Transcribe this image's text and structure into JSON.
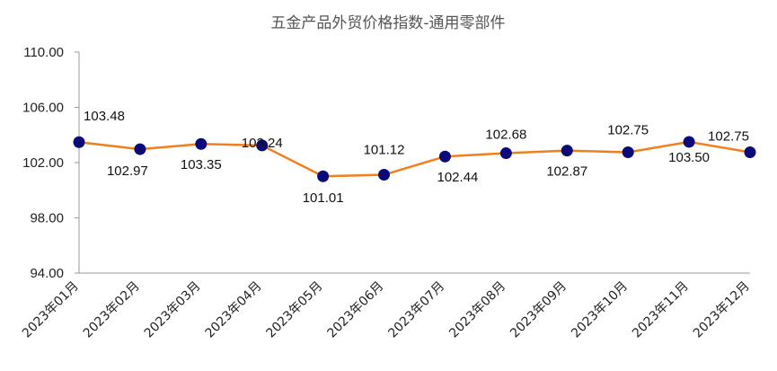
{
  "chart_data": {
    "type": "line",
    "title": "五金产品外贸价格指数-通用零部件",
    "xlabel": "",
    "ylabel": "",
    "ylim": [
      94,
      110
    ],
    "yticks": [
      "94.00",
      "98.00",
      "102.00",
      "106.00",
      "110.00"
    ],
    "grid": false,
    "categories": [
      "2023年01月",
      "2023年02月",
      "2023年03月",
      "2023年04月",
      "2023年05月",
      "2023年06月",
      "2023年07月",
      "2023年08月",
      "2023年09月",
      "2023年10月",
      "2023年11月",
      "2023年12月"
    ],
    "series": [
      {
        "values": [
          103.48,
          102.97,
          103.35,
          103.24,
          101.01,
          101.12,
          102.44,
          102.68,
          102.87,
          102.75,
          103.5,
          102.75
        ],
        "labels": [
          "103.48",
          "102.97",
          "103.35",
          "103.24",
          "101.01",
          "101.12",
          "102.44",
          "102.68",
          "102.87",
          "102.75",
          "103.50",
          "102.75"
        ],
        "line_color": "#F07F1E",
        "marker_color": "#0A0A78"
      }
    ]
  }
}
